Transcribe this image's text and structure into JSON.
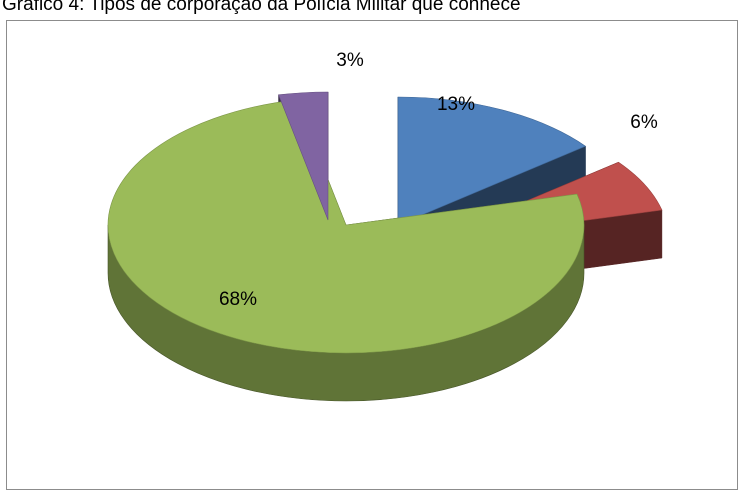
{
  "caption": "Gráfico 4: Tipos de corporação da Polícia Militar que conhece",
  "chart_data": {
    "type": "pie",
    "three_d": true,
    "exploded": true,
    "slices": [
      {
        "value": 13,
        "label": "13%",
        "color": "#4f81bd"
      },
      {
        "value": 6,
        "label": "6%",
        "color": "#c0504d"
      },
      {
        "value": 68,
        "label": "68%",
        "color": "#9bbb59"
      },
      {
        "value": 3,
        "label": "3%",
        "color": "#8064a2"
      }
    ],
    "legend": "none"
  }
}
